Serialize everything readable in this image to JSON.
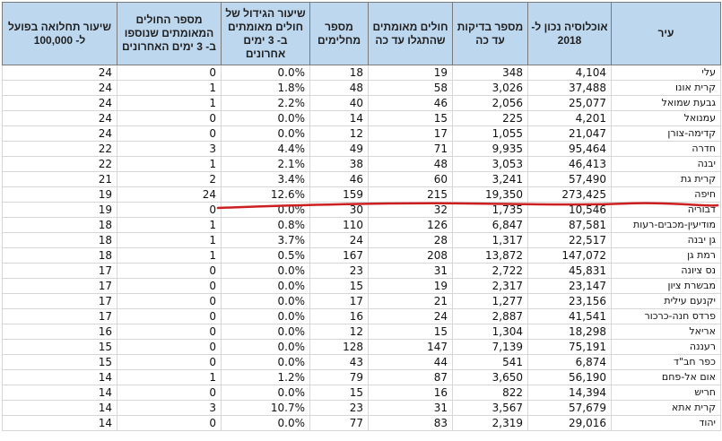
{
  "headers": {
    "city": "עיר",
    "population": "אוכלוסיה נכון ל- 2018",
    "tests": "מספר בדיקות עד כה",
    "confirmed": "חולים מאומתים שהתגלו עד כה",
    "recovered": "מספר מחלימים",
    "growth": "שיעור הגידול של חולים מאומתים ב- 3 ימים אחרונים",
    "new_confirmed": "מספר החולים המאומתים שנוספו ב- 3 ימים האחרונים",
    "infection_rate": "שיעור תחלואה בפועל ל- 100,000"
  },
  "rows": [
    {
      "city": "עלי",
      "population": "4,104",
      "tests": "348",
      "confirmed": "19",
      "recovered": "18",
      "growth": "0.0%",
      "new_confirmed": "0",
      "infection_rate": "24"
    },
    {
      "city": "קרית אונו",
      "population": "37,488",
      "tests": "3,026",
      "confirmed": "58",
      "recovered": "48",
      "growth": "1.8%",
      "new_confirmed": "1",
      "infection_rate": "24"
    },
    {
      "city": "גבעת שמואל",
      "population": "25,077",
      "tests": "2,056",
      "confirmed": "46",
      "recovered": "40",
      "growth": "2.2%",
      "new_confirmed": "1",
      "infection_rate": "24"
    },
    {
      "city": "עמנואל",
      "population": "4,201",
      "tests": "225",
      "confirmed": "15",
      "recovered": "14",
      "growth": "0.0%",
      "new_confirmed": "0",
      "infection_rate": "24"
    },
    {
      "city": "קדימה-צורן",
      "population": "21,047",
      "tests": "1,055",
      "confirmed": "17",
      "recovered": "12",
      "growth": "0.0%",
      "new_confirmed": "0",
      "infection_rate": "24"
    },
    {
      "city": "חדרה",
      "population": "95,464",
      "tests": "9,935",
      "confirmed": "71",
      "recovered": "49",
      "growth": "4.4%",
      "new_confirmed": "3",
      "infection_rate": "22"
    },
    {
      "city": "יבנה",
      "population": "46,413",
      "tests": "3,053",
      "confirmed": "48",
      "recovered": "38",
      "growth": "2.1%",
      "new_confirmed": "1",
      "infection_rate": "22"
    },
    {
      "city": "קרית גת",
      "population": "57,490",
      "tests": "3,241",
      "confirmed": "60",
      "recovered": "46",
      "growth": "3.4%",
      "new_confirmed": "2",
      "infection_rate": "21"
    },
    {
      "city": "חיפה",
      "population": "273,425",
      "tests": "19,350",
      "confirmed": "215",
      "recovered": "159",
      "growth": "12.6%",
      "new_confirmed": "24",
      "infection_rate": "19"
    },
    {
      "city": "דבוריה",
      "population": "10,546",
      "tests": "1,735",
      "confirmed": "32",
      "recovered": "30",
      "growth": "0.0%",
      "new_confirmed": "0",
      "infection_rate": "19"
    },
    {
      "city": "מודיעין-מכבים-רעות",
      "population": "87,581",
      "tests": "6,847",
      "confirmed": "126",
      "recovered": "110",
      "growth": "0.8%",
      "new_confirmed": "1",
      "infection_rate": "18"
    },
    {
      "city": "גן יבנה",
      "population": "22,517",
      "tests": "1,317",
      "confirmed": "28",
      "recovered": "24",
      "growth": "3.7%",
      "new_confirmed": "1",
      "infection_rate": "18"
    },
    {
      "city": "רמת גן",
      "population": "147,072",
      "tests": "13,872",
      "confirmed": "208",
      "recovered": "167",
      "growth": "0.5%",
      "new_confirmed": "1",
      "infection_rate": "18"
    },
    {
      "city": "נס ציונה",
      "population": "45,831",
      "tests": "2,722",
      "confirmed": "31",
      "recovered": "23",
      "growth": "0.0%",
      "new_confirmed": "0",
      "infection_rate": "17"
    },
    {
      "city": "מבשרת ציון",
      "population": "23,147",
      "tests": "2,317",
      "confirmed": "19",
      "recovered": "15",
      "growth": "0.0%",
      "new_confirmed": "0",
      "infection_rate": "17"
    },
    {
      "city": "יקנעם עילית",
      "population": "23,156",
      "tests": "1,277",
      "confirmed": "21",
      "recovered": "17",
      "growth": "0.0%",
      "new_confirmed": "0",
      "infection_rate": "17"
    },
    {
      "city": "פרדס חנה-כרכור",
      "population": "41,541",
      "tests": "2,887",
      "confirmed": "24",
      "recovered": "16",
      "growth": "0.0%",
      "new_confirmed": "0",
      "infection_rate": "17"
    },
    {
      "city": "אריאל",
      "population": "18,298",
      "tests": "1,304",
      "confirmed": "15",
      "recovered": "12",
      "growth": "0.0%",
      "new_confirmed": "0",
      "infection_rate": "16"
    },
    {
      "city": "רעננה",
      "population": "75,191",
      "tests": "7,139",
      "confirmed": "147",
      "recovered": "128",
      "growth": "0.0%",
      "new_confirmed": "0",
      "infection_rate": "15"
    },
    {
      "city": "כפר חב\"ד",
      "population": "6,874",
      "tests": "541",
      "confirmed": "44",
      "recovered": "43",
      "growth": "0.0%",
      "new_confirmed": "0",
      "infection_rate": "15"
    },
    {
      "city": "אום אל-פחם",
      "population": "56,190",
      "tests": "3,650",
      "confirmed": "87",
      "recovered": "79",
      "growth": "1.2%",
      "new_confirmed": "1",
      "infection_rate": "14"
    },
    {
      "city": "חריש",
      "population": "14,394",
      "tests": "822",
      "confirmed": "16",
      "recovered": "15",
      "growth": "0.0%",
      "new_confirmed": "0",
      "infection_rate": "14"
    },
    {
      "city": "קרית אתא",
      "population": "57,679",
      "tests": "3,567",
      "confirmed": "31",
      "recovered": "23",
      "growth": "10.7%",
      "new_confirmed": "3",
      "infection_rate": "14"
    },
    {
      "city": "יהוד",
      "population": "29,016",
      "tests": "2,319",
      "confirmed": "83",
      "recovered": "77",
      "growth": "0.0%",
      "new_confirmed": "0",
      "infection_rate": "14"
    }
  ],
  "highlight": {
    "row_city": "חיפה",
    "stroke_color": "#cc1f1f"
  }
}
